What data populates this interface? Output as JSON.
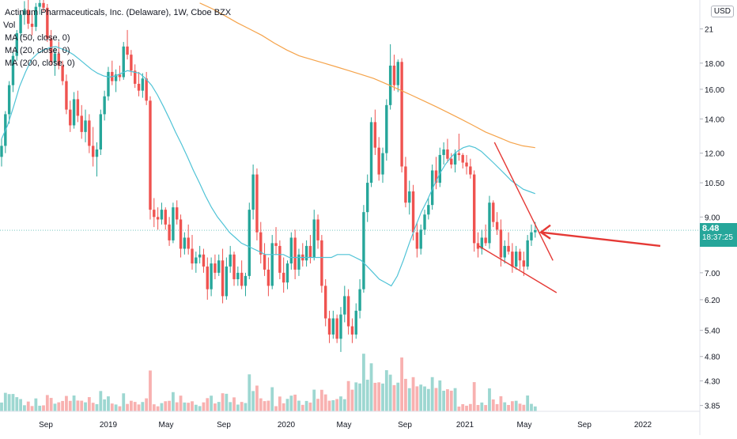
{
  "header": {
    "title": "Actinium Pharmaceuticals, Inc. (Delaware), 1W, Cboe BZX",
    "vol_label": "Vol",
    "ma_labels": [
      "MA (50, close, 0)",
      "MA (20, close, 0)",
      "MA (200, close, 0)"
    ],
    "currency": "USD"
  },
  "last_price": {
    "value": "8.48",
    "countdown": "18:37:25"
  },
  "colors": {
    "up": "#26a69a",
    "down": "#ef5350",
    "ma_fast": "#4fc3d6",
    "ma_slow": "#f5a34a",
    "drawing": "#e53935"
  },
  "chart_data": {
    "type": "candlestick",
    "y_scale": "log",
    "ylim": [
      3.75,
      23.5
    ],
    "y_ticks": [
      "21",
      "18.00",
      "16.00",
      "14.00",
      "12.00",
      "10.50",
      "9.00",
      "8.48",
      "7.00",
      "6.20",
      "5.40",
      "4.80",
      "4.30",
      "3.85"
    ],
    "x_ticks": [
      "Sep",
      "2019",
      "May",
      "Sep",
      "2020",
      "May",
      "Sep",
      "2021",
      "May",
      "Sep",
      "2022"
    ],
    "ohlc": [
      [
        11.8,
        12.8,
        11.3,
        12.4
      ],
      [
        12.4,
        14.5,
        12.0,
        14.3
      ],
      [
        14.3,
        16.6,
        13.7,
        16.3
      ],
      [
        16.3,
        18.9,
        15.8,
        18.6
      ],
      [
        18.6,
        20.9,
        18.2,
        20.6
      ],
      [
        20.6,
        22.8,
        20.0,
        22.4
      ],
      [
        22.4,
        23.8,
        21.4,
        22.9
      ],
      [
        22.9,
        24.0,
        21.0,
        21.5
      ],
      [
        21.5,
        22.5,
        20.4,
        21.2
      ],
      [
        21.2,
        23.6,
        20.8,
        23.2
      ],
      [
        23.2,
        24.0,
        22.4,
        23.6
      ],
      [
        23.6,
        24.0,
        22.7,
        23.1
      ],
      [
        23.1,
        23.5,
        19.8,
        20.1
      ],
      [
        20.1,
        20.9,
        17.8,
        18.1
      ],
      [
        18.1,
        19.3,
        17.0,
        18.8
      ],
      [
        18.8,
        19.8,
        17.5,
        17.8
      ],
      [
        17.8,
        18.2,
        16.3,
        16.6
      ],
      [
        16.6,
        17.1,
        14.3,
        14.6
      ],
      [
        14.6,
        15.2,
        13.2,
        13.6
      ],
      [
        13.6,
        15.8,
        13.4,
        15.3
      ],
      [
        15.3,
        15.9,
        13.8,
        14.2
      ],
      [
        14.2,
        14.9,
        12.8,
        13.2
      ],
      [
        13.2,
        14.6,
        12.6,
        13.9
      ],
      [
        13.9,
        14.3,
        12.0,
        12.4
      ],
      [
        12.4,
        13.5,
        11.3,
        11.8
      ],
      [
        11.8,
        12.6,
        10.8,
        12.2
      ],
      [
        12.2,
        14.6,
        11.9,
        14.3
      ],
      [
        14.3,
        15.9,
        13.9,
        15.5
      ],
      [
        15.5,
        17.7,
        15.2,
        17.3
      ],
      [
        17.3,
        18.2,
        16.3,
        16.6
      ],
      [
        16.6,
        17.5,
        15.8,
        17.1
      ],
      [
        17.1,
        17.8,
        16.6,
        16.9
      ],
      [
        16.9,
        19.8,
        16.7,
        19.4
      ],
      [
        19.4,
        20.9,
        18.3,
        18.7
      ],
      [
        18.7,
        19.1,
        17.0,
        17.4
      ],
      [
        17.4,
        17.9,
        16.1,
        16.4
      ],
      [
        16.4,
        17.3,
        15.5,
        15.9
      ],
      [
        15.9,
        17.2,
        15.4,
        16.8
      ],
      [
        16.8,
        17.3,
        14.9,
        15.2
      ],
      [
        15.2,
        15.5,
        8.9,
        9.3
      ],
      [
        9.3,
        9.8,
        8.6,
        9.0
      ],
      [
        9.0,
        9.4,
        8.5,
        8.9
      ],
      [
        8.9,
        9.6,
        8.7,
        9.3
      ],
      [
        9.3,
        9.4,
        8.5,
        8.7
      ],
      [
        8.7,
        9.0,
        7.9,
        8.1
      ],
      [
        8.1,
        9.6,
        8.0,
        9.4
      ],
      [
        9.4,
        9.7,
        8.7,
        8.9
      ],
      [
        8.9,
        9.1,
        7.5,
        7.8
      ],
      [
        7.8,
        8.4,
        7.6,
        8.2
      ],
      [
        8.2,
        8.7,
        7.6,
        7.8
      ],
      [
        7.8,
        8.3,
        7.1,
        7.3
      ],
      [
        7.3,
        7.7,
        7.0,
        7.5
      ],
      [
        7.5,
        7.9,
        7.3,
        7.6
      ],
      [
        7.6,
        7.8,
        7.0,
        7.2
      ],
      [
        7.2,
        7.5,
        6.2,
        6.5
      ],
      [
        6.5,
        7.5,
        6.3,
        7.3
      ],
      [
        7.3,
        7.6,
        6.8,
        7.0
      ],
      [
        7.0,
        7.6,
        6.9,
        7.4
      ],
      [
        7.4,
        7.8,
        6.1,
        6.3
      ],
      [
        6.3,
        7.5,
        6.2,
        7.2
      ],
      [
        7.2,
        7.9,
        7.0,
        7.6
      ],
      [
        7.6,
        7.7,
        6.6,
        6.8
      ],
      [
        6.8,
        7.2,
        6.6,
        7.0
      ],
      [
        7.0,
        7.4,
        6.5,
        6.6
      ],
      [
        6.6,
        7.0,
        6.3,
        6.9
      ],
      [
        6.9,
        9.6,
        6.8,
        9.3
      ],
      [
        9.3,
        11.4,
        8.9,
        10.9
      ],
      [
        10.9,
        11.2,
        8.1,
        8.4
      ],
      [
        8.4,
        8.8,
        7.3,
        7.6
      ],
      [
        7.6,
        8.0,
        6.9,
        7.1
      ],
      [
        7.1,
        7.5,
        6.3,
        6.6
      ],
      [
        6.6,
        8.3,
        6.5,
        8.0
      ],
      [
        8.0,
        8.6,
        7.6,
        7.9
      ],
      [
        7.9,
        8.1,
        6.8,
        7.0
      ],
      [
        7.0,
        7.5,
        6.4,
        6.7
      ],
      [
        6.7,
        7.4,
        6.5,
        7.3
      ],
      [
        7.3,
        8.4,
        7.1,
        8.2
      ],
      [
        8.2,
        8.5,
        6.8,
        7.1
      ],
      [
        7.1,
        7.8,
        6.9,
        7.6
      ],
      [
        7.6,
        8.0,
        7.2,
        7.4
      ],
      [
        7.4,
        8.1,
        7.2,
        7.9
      ],
      [
        7.9,
        8.3,
        7.3,
        7.5
      ],
      [
        7.5,
        9.3,
        7.4,
        8.9
      ],
      [
        8.9,
        9.1,
        7.8,
        8.1
      ],
      [
        8.1,
        8.3,
        6.4,
        6.6
      ],
      [
        6.6,
        6.8,
        5.5,
        5.7
      ],
      [
        5.7,
        5.9,
        5.1,
        5.3
      ],
      [
        5.3,
        5.9,
        5.2,
        5.7
      ],
      [
        5.7,
        5.8,
        5.1,
        5.2
      ],
      [
        5.2,
        6.0,
        4.9,
        5.8
      ],
      [
        5.8,
        6.6,
        5.6,
        6.3
      ],
      [
        6.3,
        6.5,
        5.3,
        5.5
      ],
      [
        5.5,
        5.7,
        5.1,
        5.3
      ],
      [
        5.3,
        6.1,
        5.2,
        5.9
      ],
      [
        5.9,
        6.8,
        5.7,
        6.5
      ],
      [
        6.5,
        9.5,
        6.4,
        9.2
      ],
      [
        9.2,
        10.9,
        8.8,
        10.5
      ],
      [
        10.5,
        14.1,
        10.3,
        13.8
      ],
      [
        13.8,
        14.6,
        11.9,
        12.3
      ],
      [
        12.3,
        12.9,
        10.6,
        10.9
      ],
      [
        10.9,
        12.3,
        10.5,
        12.0
      ],
      [
        12.0,
        15.3,
        11.6,
        14.9
      ],
      [
        14.9,
        19.6,
        14.6,
        17.8
      ],
      [
        17.8,
        18.7,
        15.9,
        16.3
      ],
      [
        16.3,
        18.3,
        15.8,
        18.1
      ],
      [
        18.1,
        18.4,
        11.0,
        11.3
      ],
      [
        11.3,
        11.8,
        9.4,
        9.6
      ],
      [
        9.6,
        10.6,
        9.1,
        10.1
      ],
      [
        10.1,
        10.4,
        8.1,
        8.4
      ],
      [
        8.4,
        8.8,
        7.5,
        7.8
      ],
      [
        7.8,
        8.7,
        7.6,
        8.5
      ],
      [
        8.5,
        9.3,
        8.3,
        9.1
      ],
      [
        9.1,
        9.8,
        8.9,
        9.5
      ],
      [
        9.5,
        11.4,
        9.3,
        11.1
      ],
      [
        11.1,
        11.8,
        10.2,
        10.5
      ],
      [
        10.5,
        12.3,
        10.3,
        11.9
      ],
      [
        11.9,
        12.6,
        11.4,
        12.2
      ],
      [
        12.2,
        12.8,
        11.5,
        11.7
      ],
      [
        11.7,
        12.0,
        11.2,
        11.4
      ],
      [
        11.4,
        12.2,
        11.0,
        12.0
      ],
      [
        12.0,
        13.1,
        11.6,
        11.9
      ],
      [
        11.9,
        12.0,
        11.2,
        11.5
      ],
      [
        11.5,
        11.9,
        10.9,
        11.3
      ],
      [
        11.3,
        11.7,
        10.7,
        10.9
      ],
      [
        10.9,
        11.1,
        7.7,
        8.0
      ],
      [
        8.0,
        8.4,
        7.5,
        7.8
      ],
      [
        7.8,
        8.5,
        7.6,
        8.2
      ],
      [
        8.2,
        8.7,
        7.9,
        8.0
      ],
      [
        8.0,
        9.9,
        7.8,
        9.6
      ],
      [
        9.6,
        9.7,
        8.6,
        8.8
      ],
      [
        8.8,
        9.2,
        8.3,
        8.5
      ],
      [
        8.5,
        8.9,
        7.2,
        7.5
      ],
      [
        7.5,
        8.1,
        7.3,
        7.9
      ],
      [
        7.9,
        8.4,
        7.6,
        7.7
      ],
      [
        7.7,
        8.0,
        7.0,
        7.2
      ],
      [
        7.2,
        7.9,
        7.1,
        7.7
      ],
      [
        7.7,
        7.8,
        7.1,
        7.4
      ],
      [
        7.4,
        7.7,
        6.9,
        7.2
      ],
      [
        7.2,
        8.3,
        7.1,
        8.1
      ],
      [
        8.1,
        8.7,
        7.9,
        8.4
      ],
      [
        8.4,
        8.8,
        8.2,
        8.48
      ]
    ],
    "ma_fast": [
      12.8,
      13.6,
      14.8,
      16.2,
      17.3,
      18.3,
      18.8,
      19.1,
      19.3,
      19.4,
      19.2,
      19.0,
      18.7,
      18.3,
      17.9,
      17.5,
      17.2,
      17.0,
      16.9,
      17.0,
      17.2,
      17.4,
      17.3,
      17.2,
      16.8,
      16.3,
      15.6,
      14.8,
      14.0,
      13.2,
      12.5,
      11.8,
      11.1,
      10.5,
      9.9,
      9.4,
      9.0,
      8.7,
      8.4,
      8.2,
      8.0,
      7.9,
      7.8,
      7.7,
      7.6,
      7.6,
      7.6,
      7.6,
      7.5,
      7.5,
      7.5,
      7.5,
      7.5,
      7.5,
      7.5,
      7.5,
      7.6,
      7.6,
      7.6,
      7.5,
      7.4,
      7.2,
      7.0,
      6.8,
      6.7,
      6.6,
      6.9,
      7.4,
      8.0,
      8.6,
      9.2,
      9.7,
      10.3,
      10.9,
      11.4,
      11.8,
      12.1,
      12.3,
      12.4,
      12.3,
      12.1,
      11.8,
      11.5,
      11.2,
      10.9,
      10.6,
      10.4,
      10.2,
      10.1,
      10.0
    ],
    "ma_fast_start": 0,
    "ma_slow_start": 52,
    "ma_slow": [
      23.6,
      23.0,
      22.3,
      21.6,
      21.0,
      20.4,
      19.7,
      19.1,
      18.6,
      18.3,
      18.0,
      17.7,
      17.4,
      17.1,
      16.8,
      16.4,
      16.0,
      15.6,
      15.2,
      14.8,
      14.4,
      14.0,
      13.6,
      13.2,
      12.9,
      12.6,
      12.4,
      12.3
    ]
  },
  "annotations": {
    "channel_upper": [
      [
        9.45,
        12.6
      ],
      [
        9.93,
        7.4
      ]
    ],
    "channel_lower": [
      [
        9.32,
        7.9
      ],
      [
        9.96,
        6.4
      ]
    ],
    "arrow_from": [
      10.68,
      7.9
    ],
    "arrow_to": [
      10.05,
      8.4
    ]
  }
}
